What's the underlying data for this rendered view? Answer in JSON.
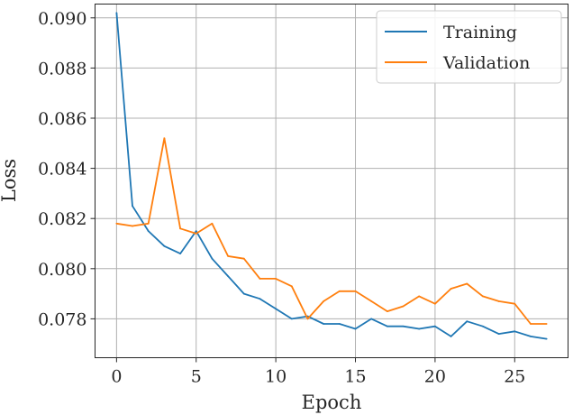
{
  "chart_data": {
    "type": "line",
    "title": "",
    "xlabel": "Epoch",
    "ylabel": "Loss",
    "xlim": [
      -1.35,
      28.35
    ],
    "ylim": [
      0.07645,
      0.09055
    ],
    "xticks": [
      0,
      5,
      10,
      15,
      20,
      25
    ],
    "yticks": [
      0.078,
      0.08,
      0.082,
      0.084,
      0.086,
      0.088,
      0.09
    ],
    "grid": true,
    "legend_position": "top-right",
    "x": [
      0,
      1,
      2,
      3,
      4,
      5,
      6,
      7,
      8,
      9,
      10,
      11,
      12,
      13,
      14,
      15,
      16,
      17,
      18,
      19,
      20,
      21,
      22,
      23,
      24,
      25,
      26,
      27
    ],
    "series": [
      {
        "name": "Training",
        "color": "#1f77b4",
        "values": [
          0.0902,
          0.0825,
          0.0815,
          0.0809,
          0.0806,
          0.0815,
          0.0804,
          0.0797,
          0.079,
          0.0788,
          0.0784,
          0.078,
          0.0781,
          0.0778,
          0.0778,
          0.0776,
          0.078,
          0.0777,
          0.0777,
          0.0776,
          0.0777,
          0.0773,
          0.0779,
          0.0777,
          0.0774,
          0.0775,
          0.0773,
          0.0772
        ]
      },
      {
        "name": "Validation",
        "color": "#ff7f0e",
        "values": [
          0.0818,
          0.0817,
          0.0818,
          0.0852,
          0.0816,
          0.0814,
          0.0818,
          0.0805,
          0.0804,
          0.0796,
          0.0796,
          0.0793,
          0.078,
          0.0787,
          0.0791,
          0.0791,
          0.0787,
          0.0783,
          0.0785,
          0.0789,
          0.0786,
          0.0792,
          0.0794,
          0.0789,
          0.0787,
          0.0786,
          0.0778,
          0.0778
        ]
      }
    ]
  }
}
